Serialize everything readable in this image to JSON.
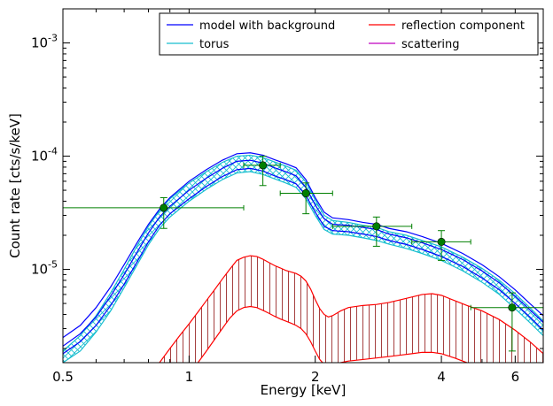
{
  "chart_data": {
    "type": "line",
    "xlabel": "Energy [keV]",
    "ylabel": "Count rate [cts/s/keV]",
    "x_scale": "log",
    "y_scale": "log",
    "xlim": [
      0.5,
      7.0
    ],
    "ylim": [
      1.5e-06,
      0.002
    ],
    "x_ticks": [
      {
        "value": 0.5,
        "label": "0.5"
      },
      {
        "value": 1,
        "label": "1"
      },
      {
        "value": 2,
        "label": "2"
      },
      {
        "value": 4,
        "label": "4"
      },
      {
        "value": 6,
        "label": "6"
      }
    ],
    "y_ticks": [
      {
        "value": 1e-05,
        "base": "10",
        "exp": "-5"
      },
      {
        "value": 0.0001,
        "base": "10",
        "exp": "-4"
      },
      {
        "value": 0.001,
        "base": "10",
        "exp": "-3"
      }
    ],
    "grid": false,
    "legend_position": "top-right",
    "legend": [
      {
        "label": "model with background",
        "color": "#0000ff"
      },
      {
        "label": "reflection component",
        "color": "#ff0000"
      },
      {
        "label": "torus",
        "color": "#17becf"
      },
      {
        "label": "scattering",
        "color": "#bf00bf"
      }
    ],
    "series": [
      {
        "name": "model with background",
        "color": "#0000ff",
        "x": [
          0.5,
          0.55,
          0.6,
          0.65,
          0.7,
          0.75,
          0.8,
          0.85,
          0.9,
          1.0,
          1.1,
          1.2,
          1.3,
          1.4,
          1.5,
          1.6,
          1.7,
          1.8,
          1.9,
          2.0,
          2.1,
          2.2,
          2.4,
          2.6,
          2.8,
          3.0,
          3.3,
          3.6,
          4.0,
          4.5,
          5.0,
          5.5,
          6.0,
          6.5,
          7.0
        ],
        "upper": [
          2.5e-06,
          3.2e-06,
          4.6e-06,
          7e-06,
          1.1e-05,
          1.7e-05,
          2.5e-05,
          3.4e-05,
          4.3e-05,
          6e-05,
          7.6e-05,
          9.2e-05,
          0.000105,
          0.000107,
          0.000102,
          9.3e-05,
          8.6e-05,
          7.9e-05,
          6.2e-05,
          4.3e-05,
          3.2e-05,
          2.85e-05,
          2.75e-05,
          2.6e-05,
          2.5e-05,
          2.3e-05,
          2.15e-05,
          1.95e-05,
          1.7e-05,
          1.38e-05,
          1.1e-05,
          8.6e-06,
          6.6e-06,
          5e-06,
          3.9e-06
        ],
        "mid": [
          2.1e-06,
          2.7e-06,
          3.8e-06,
          5.8e-06,
          9e-06,
          1.4e-05,
          2.1e-05,
          2.9e-05,
          3.6e-05,
          5e-05,
          6.4e-05,
          7.8e-05,
          9e-05,
          9.2e-05,
          8.7e-05,
          7.9e-05,
          7.3e-05,
          6.7e-05,
          5.3e-05,
          3.7e-05,
          2.8e-05,
          2.5e-05,
          2.45e-05,
          2.35e-05,
          2.25e-05,
          2.05e-05,
          1.9e-05,
          1.72e-05,
          1.5e-05,
          1.22e-05,
          9.7e-06,
          7.6e-06,
          5.8e-06,
          4.4e-06,
          3.4e-06
        ],
        "lower": [
          1.8e-06,
          2.3e-06,
          3.2e-06,
          4.8e-06,
          7.4e-06,
          1.15e-05,
          1.75e-05,
          2.45e-05,
          3.1e-05,
          4.2e-05,
          5.4e-05,
          6.6e-05,
          7.6e-05,
          7.8e-05,
          7.4e-05,
          6.7e-05,
          6.2e-05,
          5.7e-05,
          4.5e-05,
          3.2e-05,
          2.4e-05,
          2.2e-05,
          2.15e-05,
          2.05e-05,
          1.95e-05,
          1.8e-05,
          1.66e-05,
          1.5e-05,
          1.3e-05,
          1.06e-05,
          8.4e-06,
          6.6e-06,
          5e-06,
          3.8e-06,
          2.9e-06
        ]
      },
      {
        "name": "torus",
        "color": "#17becf",
        "x": [
          0.5,
          0.55,
          0.6,
          0.65,
          0.7,
          0.75,
          0.8,
          0.85,
          0.9,
          1.0,
          1.1,
          1.2,
          1.3,
          1.4,
          1.5,
          1.6,
          1.7,
          1.8,
          1.9,
          2.0,
          2.1,
          2.2,
          2.4,
          2.6,
          2.8,
          3.0,
          3.3,
          3.6,
          4.0,
          4.5,
          5.0,
          5.5,
          6.0,
          6.5,
          7.0
        ],
        "upper": [
          1.9e-06,
          2.6e-06,
          3.9e-06,
          6.2e-06,
          1e-05,
          1.6e-05,
          2.4e-05,
          3.3e-05,
          4.2e-05,
          5.8e-05,
          7.3e-05,
          8.8e-05,
          0.0001,
          0.000102,
          9.7e-05,
          8.9e-05,
          8.2e-05,
          7.5e-05,
          5.9e-05,
          4.1e-05,
          3e-05,
          2.7e-05,
          2.6e-05,
          2.45e-05,
          2.35e-05,
          2.15e-05,
          2e-05,
          1.8e-05,
          1.58e-05,
          1.28e-05,
          1.02e-05,
          8e-06,
          6.1e-06,
          4.6e-06,
          3.5e-06
        ],
        "lower": [
          1.5e-06,
          1.9e-06,
          2.8e-06,
          4.3e-06,
          6.9e-06,
          1.08e-05,
          1.65e-05,
          2.3e-05,
          2.9e-05,
          4e-05,
          5.1e-05,
          6.2e-05,
          7.1e-05,
          7.3e-05,
          6.9e-05,
          6.3e-05,
          5.8e-05,
          5.3e-05,
          4.2e-05,
          3e-05,
          2.25e-05,
          2.05e-05,
          2e-05,
          1.9e-05,
          1.8e-05,
          1.67e-05,
          1.53e-05,
          1.38e-05,
          1.2e-05,
          9.7e-06,
          7.7e-06,
          6e-06,
          4.5e-06,
          3.4e-06,
          2.6e-06
        ]
      },
      {
        "name": "reflection component",
        "color": "#ff0000",
        "x": [
          0.85,
          0.9,
          0.95,
          1.0,
          1.05,
          1.1,
          1.15,
          1.2,
          1.25,
          1.3,
          1.35,
          1.4,
          1.45,
          1.5,
          1.55,
          1.6,
          1.65,
          1.7,
          1.75,
          1.8,
          1.85,
          1.9,
          1.95,
          2.0,
          2.05,
          2.1,
          2.15,
          2.2,
          2.3,
          2.4,
          2.6,
          2.8,
          3.0,
          3.2,
          3.4,
          3.6,
          3.8,
          4.0,
          4.3,
          4.6,
          5.0,
          5.5,
          6.0,
          6.5,
          7.0
        ],
        "upper": [
          1.5e-06,
          2e-06,
          2.6e-06,
          3.3e-06,
          4.2e-06,
          5.3e-06,
          6.6e-06,
          8.2e-06,
          1e-05,
          1.2e-05,
          1.28e-05,
          1.32e-05,
          1.3e-05,
          1.23e-05,
          1.15e-05,
          1.08e-05,
          1.03e-05,
          9.8e-06,
          9.5e-06,
          9.2e-06,
          8.7e-06,
          7.9e-06,
          6.7e-06,
          5.4e-06,
          4.5e-06,
          4e-06,
          3.8e-06,
          3.9e-06,
          4.3e-06,
          4.6e-06,
          4.8e-06,
          4.9e-06,
          5.1e-06,
          5.4e-06,
          5.7e-06,
          6e-06,
          6.1e-06,
          5.9e-06,
          5.3e-06,
          4.8e-06,
          4.3e-06,
          3.6e-06,
          2.9e-06,
          2.3e-06,
          1.8e-06
        ],
        "lower": [
          0,
          0,
          0,
          1.2e-06,
          1.5e-06,
          1.9e-06,
          2.4e-06,
          3e-06,
          3.7e-06,
          4.3e-06,
          4.6e-06,
          4.7e-06,
          4.6e-06,
          4.35e-06,
          4.1e-06,
          3.85e-06,
          3.65e-06,
          3.5e-06,
          3.35e-06,
          3.2e-06,
          3e-06,
          2.7e-06,
          2.3e-06,
          1.9e-06,
          1.6e-06,
          1.45e-06,
          1.4e-06,
          1.42e-06,
          1.5e-06,
          1.55e-06,
          1.6e-06,
          1.65e-06,
          1.7e-06,
          1.75e-06,
          1.8e-06,
          1.85e-06,
          1.85e-06,
          1.8e-06,
          1.65e-06,
          1.5e-06,
          0,
          0,
          0,
          0,
          0
        ]
      },
      {
        "name": "data",
        "color": "#007f00",
        "points": [
          {
            "x": 0.87,
            "y": 3.5e-05,
            "xlo": 0.5,
            "xhi": 1.35,
            "ylo": 2.3e-05,
            "yhi": 4.3e-05
          },
          {
            "x": 1.5,
            "y": 8.3e-05,
            "xlo": 1.35,
            "xhi": 1.65,
            "ylo": 5.5e-05,
            "yhi": 0.0001
          },
          {
            "x": 1.9,
            "y": 4.7e-05,
            "xlo": 1.65,
            "xhi": 2.2,
            "ylo": 3.1e-05,
            "yhi": 5.8e-05
          },
          {
            "x": 2.8,
            "y": 2.4e-05,
            "xlo": 2.2,
            "xhi": 3.4,
            "ylo": 1.6e-05,
            "yhi": 2.9e-05
          },
          {
            "x": 4.0,
            "y": 1.75e-05,
            "xlo": 3.4,
            "xhi": 4.7,
            "ylo": 1.2e-05,
            "yhi": 2.2e-05
          },
          {
            "x": 5.9,
            "y": 4.6e-06,
            "xlo": 4.7,
            "xhi": 7.0,
            "ylo": 1.9e-06,
            "yhi": 6.2e-06
          }
        ]
      }
    ]
  }
}
